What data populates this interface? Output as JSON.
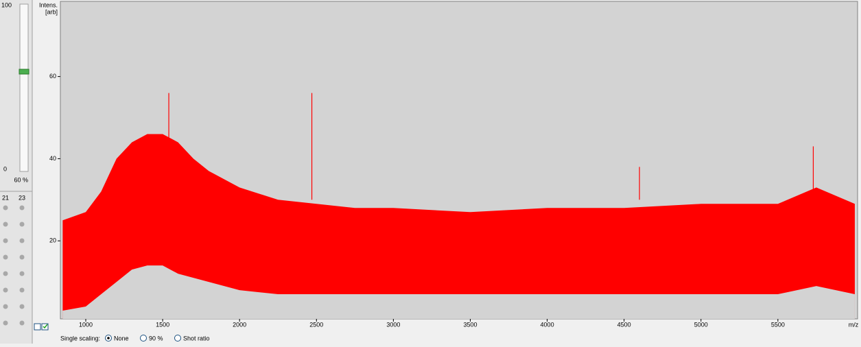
{
  "slider": {
    "max": "100",
    "min": "0",
    "value": "60 %"
  },
  "channels": [
    "21",
    "23"
  ],
  "chart_data": {
    "type": "spectrum",
    "ylabel": [
      "Intens.",
      "[arb]"
    ],
    "xlabel": "m/z",
    "x": [
      850,
      1000,
      1100,
      1200,
      1300,
      1400,
      1500,
      1600,
      1700,
      1800,
      1900,
      2000,
      2250,
      2500,
      2750,
      3000,
      3500,
      4000,
      4500,
      5000,
      5500,
      5750,
      6000
    ],
    "upper": [
      25,
      27,
      32,
      40,
      44,
      46,
      46,
      44,
      40,
      37,
      35,
      33,
      30,
      29,
      28,
      28,
      27,
      28,
      28,
      29,
      29,
      33,
      29
    ],
    "lower": [
      3,
      4,
      7,
      10,
      13,
      14,
      14,
      12,
      11,
      10,
      9,
      8,
      7,
      7,
      7,
      7,
      7,
      7,
      7,
      7,
      7,
      9,
      7
    ],
    "peaks": {
      "x": [
        1540,
        2470,
        4600,
        5730
      ],
      "values": [
        56,
        56,
        38,
        43
      ]
    },
    "color": "#ff0000",
    "background": "#d3d3d3",
    "xlim": [
      835,
      6018
    ],
    "ylim": [
      1,
      78.3
    ],
    "xticks": [
      1000,
      1500,
      2000,
      2500,
      3000,
      3500,
      4000,
      4500,
      5000,
      5500
    ],
    "yticks": [
      20,
      40,
      60
    ]
  },
  "scaling": {
    "label": "Single scaling:",
    "options": [
      "None",
      "90 %",
      "Shot ratio"
    ]
  }
}
